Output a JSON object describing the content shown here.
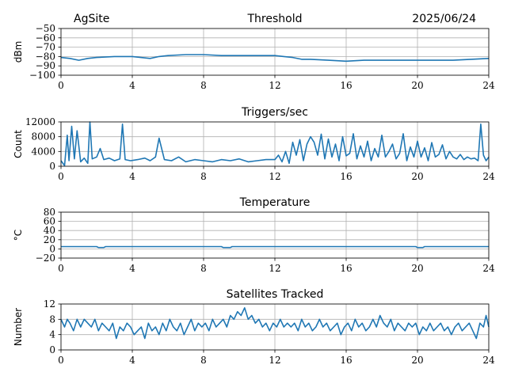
{
  "header": {
    "site": "AgSite",
    "date": "2025/06/24"
  },
  "colors": {
    "series": "#1f77b4",
    "grid": "#b0b0b0"
  },
  "chart_data": [
    {
      "type": "line",
      "title": "Threshold",
      "xlabel": "",
      "ylabel": "dBm",
      "xlim": [
        0,
        24
      ],
      "ylim": [
        -100,
        -50
      ],
      "xticks": [
        0,
        4,
        8,
        12,
        16,
        20,
        24
      ],
      "yticks": [
        -100,
        -90,
        -80,
        -70,
        -60,
        -50
      ],
      "ytick_labels": [
        "−100",
        "−90",
        "−80",
        "−70",
        "−60",
        "−50"
      ],
      "grid": true,
      "x": [
        0,
        0.5,
        1,
        1.5,
        2,
        3,
        4,
        5,
        5.5,
        6,
        7,
        8,
        9,
        10,
        11,
        12,
        12.5,
        13,
        13.5,
        14,
        15,
        16,
        17,
        18,
        19,
        20,
        21,
        22,
        23,
        24
      ],
      "values": [
        -81,
        -82,
        -84,
        -82,
        -81,
        -80,
        -80,
        -82,
        -80,
        -79,
        -78,
        -78,
        -79,
        -79,
        -79,
        -79,
        -80,
        -81,
        -83,
        -83,
        -84,
        -85,
        -84,
        -84,
        -84,
        -84,
        -84,
        -84,
        -83,
        -82
      ]
    },
    {
      "type": "line",
      "title": "Triggers/sec",
      "xlabel": "",
      "ylabel": "Count",
      "xlim": [
        0,
        24
      ],
      "ylim": [
        0,
        12000
      ],
      "xticks": [
        0,
        4,
        8,
        12,
        16,
        20,
        24
      ],
      "yticks": [
        0,
        4000,
        8000,
        12000
      ],
      "ytick_labels": [
        "0",
        "4000",
        "8000",
        "12000"
      ],
      "grid": true,
      "x": [
        0,
        0.2,
        0.35,
        0.45,
        0.6,
        0.75,
        0.9,
        1.1,
        1.3,
        1.5,
        1.62,
        1.75,
        2.0,
        2.2,
        2.4,
        2.7,
        3.0,
        3.3,
        3.45,
        3.6,
        3.9,
        4.3,
        4.7,
        5.0,
        5.3,
        5.5,
        5.8,
        6.2,
        6.6,
        7.0,
        7.5,
        8.0,
        8.5,
        9.0,
        9.5,
        10.0,
        10.5,
        11.0,
        11.5,
        12.0,
        12.2,
        12.4,
        12.6,
        12.8,
        13.0,
        13.2,
        13.4,
        13.6,
        13.8,
        14.0,
        14.2,
        14.4,
        14.6,
        14.8,
        15.0,
        15.2,
        15.4,
        15.6,
        15.8,
        16.0,
        16.2,
        16.4,
        16.6,
        16.8,
        17.0,
        17.2,
        17.4,
        17.6,
        17.8,
        18.0,
        18.2,
        18.4,
        18.6,
        18.8,
        19.0,
        19.2,
        19.4,
        19.6,
        19.8,
        20.0,
        20.2,
        20.4,
        20.6,
        20.8,
        21.0,
        21.2,
        21.4,
        21.6,
        21.8,
        22.0,
        22.2,
        22.4,
        22.6,
        22.8,
        23.0,
        23.2,
        23.4,
        23.55,
        23.7,
        23.85,
        24.0
      ],
      "values": [
        1500,
        200,
        8400,
        1500,
        10800,
        2000,
        9600,
        1200,
        2200,
        800,
        12000,
        2000,
        2500,
        4800,
        1800,
        2200,
        1500,
        2000,
        11400,
        1800,
        1500,
        1800,
        2200,
        1500,
        2500,
        7600,
        1800,
        1500,
        2500,
        1200,
        1800,
        1500,
        1200,
        1800,
        1500,
        2000,
        1200,
        1500,
        1800,
        1800,
        3000,
        1200,
        4000,
        800,
        6500,
        3000,
        7200,
        1500,
        6000,
        8000,
        6500,
        3000,
        8700,
        2000,
        7400,
        2500,
        6000,
        1500,
        8000,
        2800,
        3500,
        8800,
        2000,
        5500,
        2500,
        6800,
        1500,
        4800,
        2500,
        8400,
        2500,
        4000,
        6000,
        2000,
        3500,
        8800,
        1500,
        5200,
        2500,
        6800,
        2500,
        5000,
        1500,
        6400,
        2500,
        3200,
        5800,
        2000,
        4000,
        2500,
        2000,
        3200,
        1800,
        2500,
        2000,
        2200,
        1500,
        11400,
        3000,
        1500,
        2500
      ]
    },
    {
      "type": "line",
      "title": "Temperature",
      "xlabel": "",
      "ylabel": "°C",
      "xlim": [
        0,
        24
      ],
      "ylim": [
        -20,
        80
      ],
      "xticks": [
        0,
        4,
        8,
        12,
        16,
        20,
        24
      ],
      "yticks": [
        -20,
        0,
        20,
        40,
        60,
        80
      ],
      "ytick_labels": [
        "−20",
        "0",
        "20",
        "40",
        "60",
        "80"
      ],
      "grid": true,
      "x": [
        0,
        2.0,
        2.1,
        2.4,
        2.5,
        9.0,
        9.1,
        9.5,
        9.6,
        19.9,
        20.0,
        20.3,
        20.4,
        24
      ],
      "values": [
        5,
        5,
        3,
        3,
        5,
        5,
        3,
        3,
        5,
        5,
        3,
        3,
        5,
        5
      ]
    },
    {
      "type": "line",
      "title": "Satellites Tracked",
      "xlabel": "",
      "ylabel": "Number",
      "xlim": [
        0,
        24
      ],
      "ylim": [
        0,
        12
      ],
      "xticks": [
        0,
        4,
        8,
        12,
        16,
        20,
        24
      ],
      "yticks": [
        0,
        4,
        8,
        12
      ],
      "ytick_labels": [
        "0",
        "4",
        "8",
        "12"
      ],
      "grid": true,
      "x": [
        0,
        0.2,
        0.35,
        0.5,
        0.7,
        0.9,
        1.1,
        1.3,
        1.5,
        1.7,
        1.9,
        2.1,
        2.3,
        2.5,
        2.7,
        2.9,
        3.1,
        3.3,
        3.5,
        3.7,
        3.9,
        4.1,
        4.3,
        4.5,
        4.7,
        4.9,
        5.1,
        5.3,
        5.5,
        5.7,
        5.9,
        6.1,
        6.3,
        6.5,
        6.7,
        6.9,
        7.1,
        7.3,
        7.5,
        7.7,
        7.9,
        8.1,
        8.3,
        8.5,
        8.7,
        8.9,
        9.1,
        9.3,
        9.5,
        9.7,
        9.9,
        10.1,
        10.3,
        10.5,
        10.7,
        10.9,
        11.1,
        11.3,
        11.5,
        11.7,
        11.9,
        12.1,
        12.3,
        12.5,
        12.7,
        12.9,
        13.1,
        13.3,
        13.5,
        13.7,
        13.9,
        14.1,
        14.3,
        14.5,
        14.7,
        14.9,
        15.1,
        15.3,
        15.5,
        15.7,
        15.9,
        16.1,
        16.3,
        16.5,
        16.7,
        16.9,
        17.1,
        17.3,
        17.5,
        17.7,
        17.9,
        18.1,
        18.3,
        18.5,
        18.7,
        18.9,
        19.1,
        19.3,
        19.5,
        19.7,
        19.9,
        20.1,
        20.3,
        20.5,
        20.7,
        20.9,
        21.1,
        21.3,
        21.5,
        21.7,
        21.9,
        22.1,
        22.3,
        22.5,
        22.7,
        22.9,
        23.1,
        23.3,
        23.5,
        23.7,
        23.85,
        24.0
      ],
      "values": [
        8,
        6,
        8,
        7,
        5,
        8,
        6,
        8,
        7,
        6,
        8,
        5,
        7,
        6,
        5,
        7,
        3,
        6,
        5,
        7,
        6,
        4,
        5,
        6,
        3,
        7,
        5,
        6,
        4,
        7,
        5,
        8,
        6,
        5,
        7,
        4,
        6,
        8,
        5,
        7,
        6,
        7,
        5,
        8,
        6,
        7,
        8,
        6,
        9,
        8,
        10,
        9,
        11,
        8,
        9,
        7,
        8,
        6,
        7,
        5,
        7,
        6,
        8,
        6,
        7,
        6,
        7,
        5,
        8,
        6,
        7,
        5,
        6,
        8,
        6,
        7,
        5,
        6,
        7,
        4,
        6,
        7,
        5,
        8,
        6,
        7,
        5,
        6,
        8,
        6,
        9,
        7,
        6,
        8,
        5,
        7,
        6,
        5,
        7,
        6,
        7,
        4,
        6,
        5,
        7,
        5,
        6,
        7,
        5,
        6,
        4,
        6,
        7,
        5,
        6,
        7,
        5,
        3,
        7,
        6,
        9,
        6
      ]
    }
  ]
}
